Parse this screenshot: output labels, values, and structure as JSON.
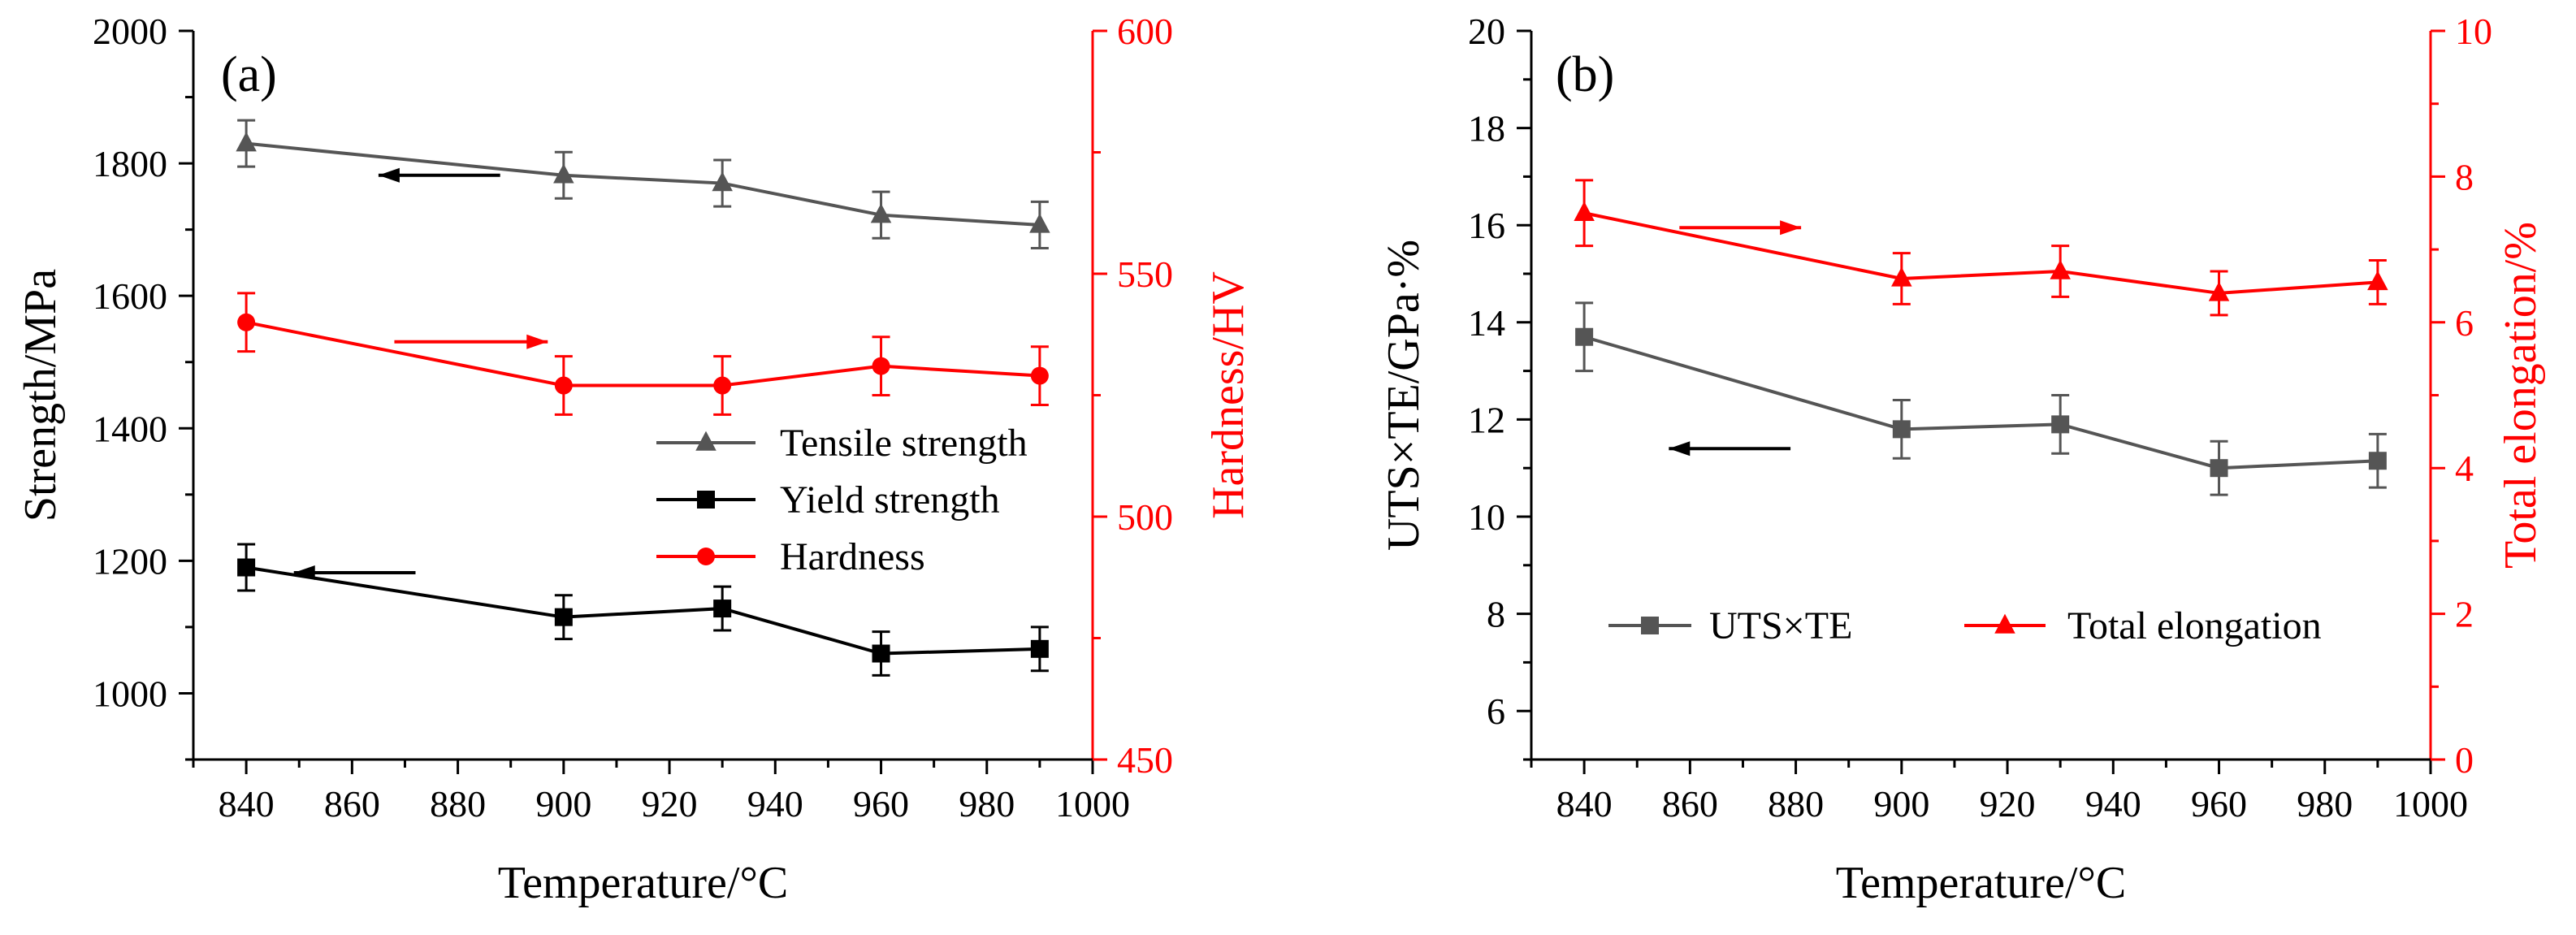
{
  "chart_data": [
    {
      "type": "line",
      "panel_label": "(a)",
      "xlabel": "Temperature/°C",
      "ylabel_left": "Strength/MPa",
      "ylabel_right": "Hardness/HV",
      "xlim": [
        830,
        1000
      ],
      "ylim_left": [
        900,
        2000
      ],
      "ylim_right": [
        450,
        600
      ],
      "x_ticks": [
        840,
        860,
        880,
        900,
        920,
        940,
        960,
        980,
        1000
      ],
      "y_ticks_left": [
        1000,
        1200,
        1400,
        1600,
        1800,
        2000
      ],
      "y_ticks_right": [
        450,
        500,
        550,
        600
      ],
      "left_axis_color": "#000000",
      "right_axis_color": "#ff0000",
      "legend_position": "center-right",
      "series": [
        {
          "name": "Tensile strength",
          "axis": "left",
          "color": "#555555",
          "marker": "triangle",
          "x": [
            840,
            900,
            930,
            960,
            990
          ],
          "y": [
            1830,
            1782,
            1770,
            1722,
            1707
          ],
          "err": [
            35,
            35,
            35,
            35,
            35
          ]
        },
        {
          "name": "Yield strength",
          "axis": "left",
          "color": "#000000",
          "marker": "square",
          "x": [
            840,
            900,
            930,
            960,
            990
          ],
          "y": [
            1190,
            1115,
            1128,
            1060,
            1067
          ],
          "err": [
            35,
            33,
            33,
            33,
            33
          ]
        },
        {
          "name": "Hardness",
          "axis": "right",
          "color": "#ff0000",
          "marker": "circle",
          "x": [
            840,
            900,
            930,
            960,
            990
          ],
          "y": [
            540,
            527,
            527,
            531,
            529
          ],
          "err": [
            6,
            6,
            6,
            6,
            6
          ]
        }
      ],
      "arrows": [
        {
          "axis": "left",
          "direction": "left",
          "color": "#000000",
          "x_from": 888,
          "x_to": 865,
          "y": 1782
        },
        {
          "axis": "left",
          "direction": "left",
          "color": "#000000",
          "x_from": 872,
          "x_to": 849,
          "y": 1182
        },
        {
          "axis": "right",
          "direction": "right",
          "color": "#ff0000",
          "x_from": 868,
          "x_to": 897,
          "y": 536
        }
      ]
    },
    {
      "type": "line",
      "panel_label": "(b)",
      "xlabel": "Temperature/°C",
      "ylabel_left": "UTS×TE/GPa·%",
      "ylabel_right": "Total elongation/%",
      "xlim": [
        830,
        1000
      ],
      "ylim_left": [
        5,
        20
      ],
      "ylim_right": [
        0,
        10
      ],
      "x_ticks": [
        840,
        860,
        880,
        900,
        920,
        940,
        960,
        980,
        1000
      ],
      "y_ticks_left": [
        6,
        8,
        10,
        12,
        14,
        16,
        18,
        20
      ],
      "y_ticks_right": [
        0,
        2,
        4,
        6,
        8,
        10
      ],
      "left_axis_color": "#000000",
      "right_axis_color": "#ff0000",
      "legend_position": "bottom-center",
      "series": [
        {
          "name": "UTS×TE",
          "axis": "left",
          "color": "#555555",
          "marker": "square",
          "x": [
            840,
            900,
            930,
            960,
            990
          ],
          "y": [
            13.7,
            11.8,
            11.9,
            11.0,
            11.15
          ],
          "err": [
            0.7,
            0.6,
            0.6,
            0.55,
            0.55
          ]
        },
        {
          "name": "Total elongation",
          "axis": "right",
          "color": "#ff0000",
          "marker": "triangle",
          "x": [
            840,
            900,
            930,
            960,
            990
          ],
          "y": [
            7.5,
            6.6,
            6.7,
            6.4,
            6.55
          ],
          "err": [
            0.45,
            0.35,
            0.35,
            0.3,
            0.3
          ]
        }
      ],
      "arrows": [
        {
          "axis": "left",
          "direction": "left",
          "color": "#000000",
          "x_from": 879,
          "x_to": 856,
          "y": 11.4
        },
        {
          "axis": "right",
          "direction": "right",
          "color": "#ff0000",
          "x_from": 858,
          "x_to": 881,
          "y": 7.3
        }
      ]
    }
  ]
}
